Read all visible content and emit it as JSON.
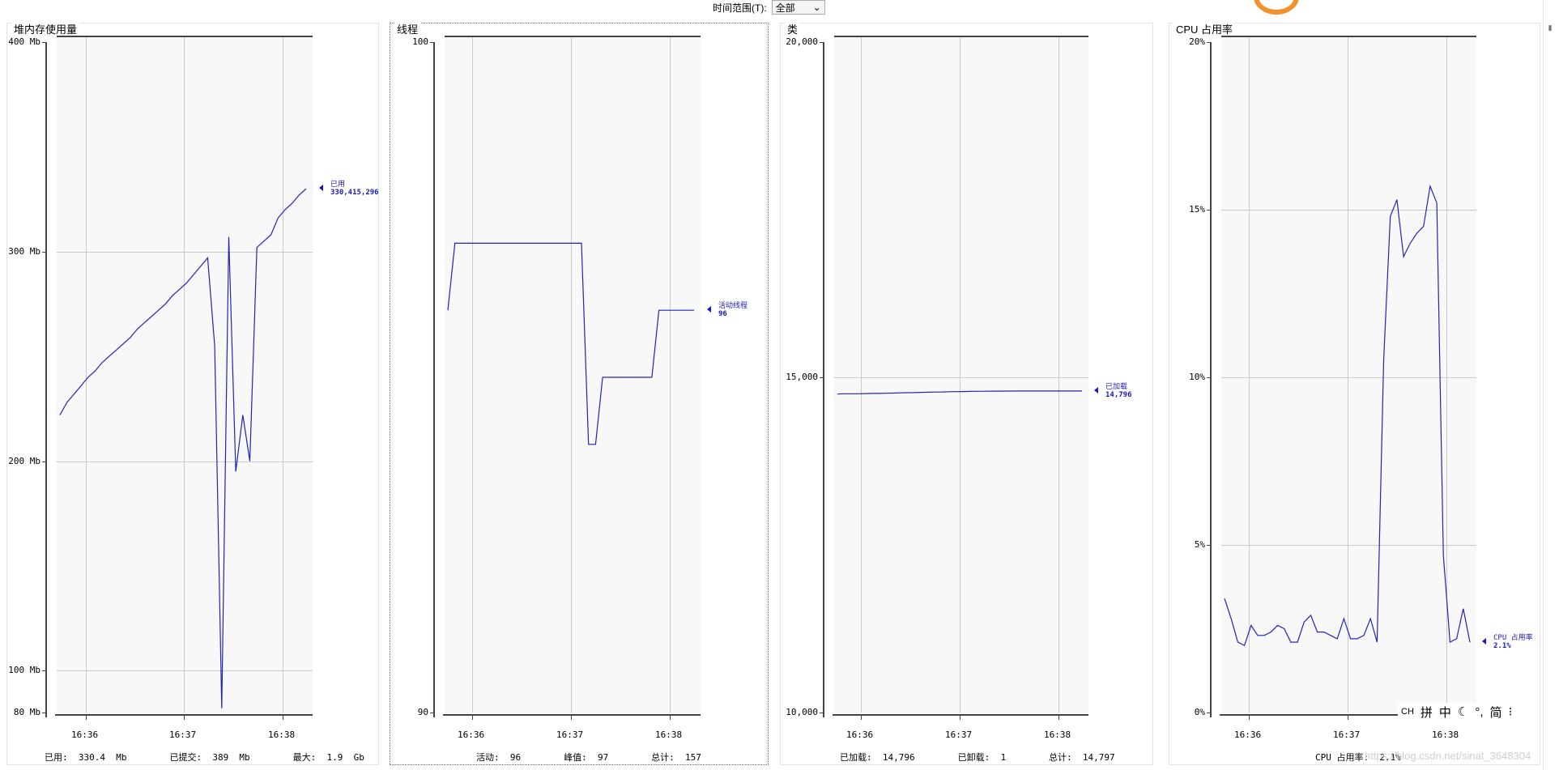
{
  "topbar": {
    "label": "时间范围(T):",
    "range_value": "全部"
  },
  "panels": {
    "heap": {
      "title": "堆内存使用量",
      "y_labels": [
        "400 Mb",
        "300 Mb",
        "200 Mb",
        "100 Mb",
        "80 Mb"
      ],
      "x_labels": [
        "16:36",
        "16:37",
        "16:38"
      ],
      "marker": {
        "name": "已用",
        "value": "330,415,296"
      },
      "footer": "已用:  330.4  Mb        已提交:  389  Mb        最大:  1.9  Gb"
    },
    "threads": {
      "title": "线程",
      "y_labels": [
        "100",
        "90"
      ],
      "x_labels": [
        "16:36",
        "16:37",
        "16:38"
      ],
      "marker": {
        "name": "活动线程",
        "value": "96"
      },
      "footer": "活动:  96        峰值:  97        总计:  157"
    },
    "classes": {
      "title": "类",
      "y_labels": [
        "20,000",
        "15,000",
        "10,000"
      ],
      "x_labels": [
        "16:36",
        "16:37",
        "16:38"
      ],
      "marker": {
        "name": "已加载",
        "value": "14,796"
      },
      "footer": "已加载:  14,796        已卸载:  1        总计:  14,797"
    },
    "cpu": {
      "title": "CPU 占用率",
      "y_labels": [
        "20%",
        "15%",
        "10%",
        "5%",
        "0%"
      ],
      "x_labels": [
        "16:36",
        "16:37",
        "16:38"
      ],
      "marker": {
        "name": "CPU 占用率",
        "value": "2.1%"
      },
      "footer": "CPU 占用率:  2.1%"
    }
  },
  "ime": {
    "items": [
      "CH",
      "拼",
      "中",
      "°,",
      "简"
    ]
  },
  "watermark": "https://blog.csdn.net/sinat_3648304",
  "colors": {
    "series": "#2222bb",
    "grid": "#c9c9c9",
    "plot_bg": "#f8f8f8",
    "gauge": "#f2922a"
  },
  "chart_data": [
    {
      "type": "line",
      "title": "堆内存使用量",
      "ylim": [
        80,
        400
      ],
      "y_unit": "Mb",
      "x_ticks": [
        "16:36",
        "16:37",
        "16:38"
      ],
      "series": [
        {
          "name": "已用",
          "values": [
            222,
            228,
            232,
            236,
            240,
            243,
            247,
            250,
            253,
            256,
            259,
            263,
            266,
            269,
            272,
            275,
            279,
            282,
            285,
            289,
            293,
            297,
            255,
            82,
            307,
            195,
            222,
            200,
            302,
            305,
            308,
            316,
            320,
            323,
            327,
            330
          ]
        }
      ]
    },
    {
      "type": "line",
      "title": "线程",
      "ylim": [
        90,
        100
      ],
      "x_ticks": [
        "16:36",
        "16:37",
        "16:38"
      ],
      "series": [
        {
          "name": "活动线程",
          "values": [
            96,
            97,
            97,
            97,
            97,
            97,
            97,
            97,
            97,
            97,
            97,
            97,
            97,
            97,
            97,
            97,
            97,
            97,
            97,
            97,
            94,
            94,
            95,
            95,
            95,
            95,
            95,
            95,
            95,
            95,
            96,
            96,
            96,
            96,
            96,
            96
          ]
        }
      ]
    },
    {
      "type": "line",
      "title": "类",
      "ylim": [
        10000,
        20000
      ],
      "x_ticks": [
        "16:36",
        "16:37",
        "16:38"
      ],
      "series": [
        {
          "name": "已加载",
          "values": [
            14750,
            14755,
            14755,
            14755,
            14757,
            14760,
            14760,
            14762,
            14765,
            14768,
            14770,
            14772,
            14775,
            14778,
            14780,
            14782,
            14785,
            14786,
            14788,
            14790,
            14791,
            14792,
            14793,
            14794,
            14795,
            14795,
            14796,
            14796,
            14796,
            14796,
            14796,
            14796,
            14796,
            14796,
            14796,
            14796
          ]
        }
      ]
    },
    {
      "type": "line",
      "title": "CPU 占用率",
      "ylim": [
        0,
        20
      ],
      "y_unit": "%",
      "x_ticks": [
        "16:36",
        "16:37",
        "16:38"
      ],
      "series": [
        {
          "name": "CPU 占用率",
          "values": [
            3.4,
            2.8,
            2.1,
            2.0,
            2.6,
            2.3,
            2.3,
            2.4,
            2.6,
            2.5,
            2.1,
            2.1,
            2.7,
            2.9,
            2.4,
            2.4,
            2.3,
            2.2,
            2.8,
            2.2,
            2.2,
            2.3,
            2.8,
            2.1,
            10.5,
            14.8,
            15.3,
            13.6,
            14.0,
            14.3,
            14.5,
            15.7,
            15.2,
            4.7,
            2.1,
            2.2,
            3.1,
            2.1
          ]
        }
      ]
    }
  ]
}
